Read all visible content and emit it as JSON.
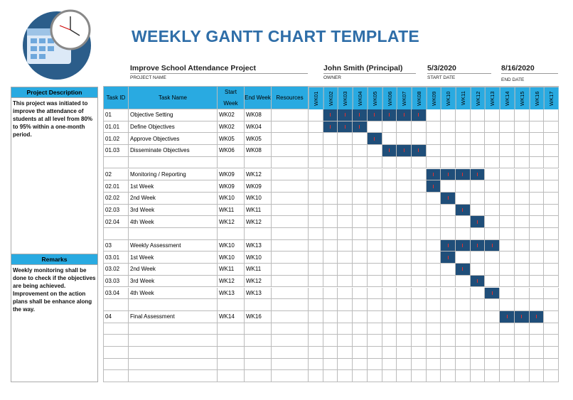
{
  "header": {
    "title": "WEEKLY GANTT CHART TEMPLATE",
    "project_name": "Improve School Attendance Project",
    "project_name_label": "PROJECT NAME",
    "owner": "John Smith (Principal)",
    "owner_label": "OWNER",
    "start_date": "5/3/2020",
    "start_date_label": "START DATE",
    "end_date": "8/16/2020",
    "end_date_label": "END DATE"
  },
  "sidebar": {
    "description_title": "Project Description",
    "description": "This project was initiated to improve the attendance of students at all level from 80% to 95% within a one-month period.",
    "remarks_title": "Remarks",
    "remarks": [
      "Weekly monitoring shall be done to check if the objectives are being achieved.",
      "Improvement on the action plans shall be enhance along the way."
    ]
  },
  "table": {
    "columns": [
      "Task ID",
      "Task Name",
      "Start Week",
      "End Week",
      "Resources"
    ],
    "weeks": [
      "WK01",
      "WK02",
      "WK03",
      "WK04",
      "WK05",
      "WK06",
      "WK07",
      "WK08",
      "WK09",
      "WK10",
      "WK11",
      "WK12",
      "WK13",
      "WK14",
      "WK15",
      "WK16",
      "WK17"
    ],
    "rows": [
      [
        "01",
        "Objective Setting",
        "WK02",
        "WK08"
      ],
      [
        "01.01",
        "Define Objectives",
        "WK02",
        "WK04"
      ],
      [
        "01.02",
        "Approve Objectives",
        "WK05",
        "WK05"
      ],
      [
        "01.03",
        "Disseminate Objectives",
        "WK06",
        "WK08"
      ],
      null,
      [
        "02",
        "Monitoring / Reporting",
        "WK09",
        "WK12"
      ],
      [
        "02.01",
        "1st Week",
        "WK09",
        "WK09"
      ],
      [
        "02.02",
        "2nd Week",
        "WK10",
        "WK10"
      ],
      [
        "02.03",
        "3rd Week",
        "WK11",
        "WK11"
      ],
      [
        "02.04",
        "4th Week",
        "WK12",
        "WK12"
      ],
      null,
      [
        "03",
        "Weekly Assessment",
        "WK10",
        "WK13"
      ],
      [
        "03.01",
        "1st Week",
        "WK10",
        "WK10"
      ],
      [
        "03.02",
        "2nd Week",
        "WK11",
        "WK11"
      ],
      [
        "03.03",
        "3rd Week",
        "WK12",
        "WK12"
      ],
      [
        "03.04",
        "4th Week",
        "WK13",
        "WK13"
      ],
      null,
      [
        "04",
        "Final Assessment",
        "WK14",
        "WK16"
      ],
      null,
      null,
      null,
      null,
      null
    ]
  }
}
